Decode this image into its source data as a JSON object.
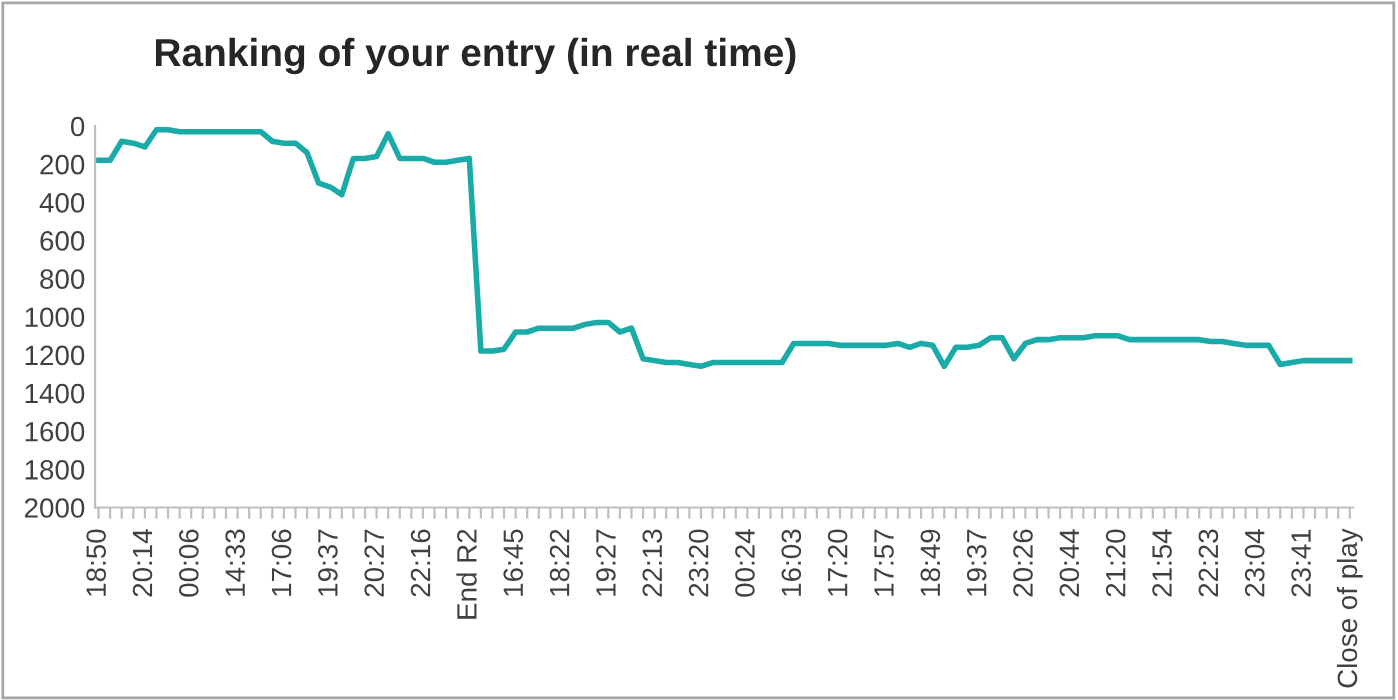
{
  "chart_data": {
    "type": "line",
    "title": "Ranking of your entry (in real time)",
    "categories": [
      "18:50",
      null,
      null,
      null,
      "20:14",
      null,
      null,
      null,
      "00:06",
      null,
      null,
      null,
      "14:33",
      null,
      null,
      null,
      "17:06",
      null,
      null,
      null,
      "19:37",
      null,
      null,
      null,
      "20:27",
      null,
      null,
      null,
      "22:16",
      null,
      null,
      null,
      "End R2",
      null,
      null,
      null,
      "16:45",
      null,
      null,
      null,
      "18:22",
      null,
      null,
      null,
      "19:27",
      null,
      null,
      null,
      "22:13",
      null,
      null,
      null,
      "23:20",
      null,
      null,
      null,
      "00:24",
      null,
      null,
      null,
      "16:03",
      null,
      null,
      null,
      "17:20",
      null,
      null,
      null,
      "17:57",
      null,
      null,
      null,
      "18:49",
      null,
      null,
      null,
      "19:37",
      null,
      null,
      null,
      "20:26",
      null,
      null,
      null,
      "20:44",
      null,
      null,
      null,
      "21:20",
      null,
      null,
      null,
      "21:54",
      null,
      null,
      null,
      "22:23",
      null,
      null,
      null,
      "23:04",
      null,
      null,
      null,
      "23:41",
      null,
      null,
      null,
      "Close of play"
    ],
    "series": [
      {
        "color": "#1aaba8",
        "values": [
          180,
          180,
          80,
          90,
          110,
          20,
          20,
          30,
          30,
          30,
          30,
          30,
          30,
          30,
          30,
          80,
          90,
          90,
          140,
          300,
          320,
          360,
          170,
          170,
          160,
          40,
          170,
          170,
          170,
          190,
          190,
          180,
          170,
          1180,
          1180,
          1170,
          1080,
          1080,
          1060,
          1060,
          1060,
          1060,
          1040,
          1030,
          1030,
          1080,
          1060,
          1220,
          1230,
          1240,
          1240,
          1250,
          1260,
          1240,
          1240,
          1240,
          1240,
          1240,
          1240,
          1240,
          1140,
          1140,
          1140,
          1140,
          1150,
          1150,
          1150,
          1150,
          1150,
          1140,
          1160,
          1140,
          1150,
          1260,
          1160,
          1160,
          1150,
          1110,
          1110,
          1220,
          1140,
          1120,
          1120,
          1110,
          1110,
          1110,
          1100,
          1100,
          1100,
          1120,
          1120,
          1120,
          1120,
          1120,
          1120,
          1120,
          1130,
          1130,
          1140,
          1150,
          1150,
          1150,
          1250,
          1240,
          1230,
          1230,
          1230,
          1230,
          1230
        ]
      }
    ],
    "ylim": [
      2000,
      0
    ],
    "yticks": [
      0,
      200,
      400,
      600,
      800,
      1000,
      1200,
      1400,
      1600,
      1800,
      2000
    ],
    "grid": false,
    "marker": "none",
    "line_style": "solid"
  }
}
